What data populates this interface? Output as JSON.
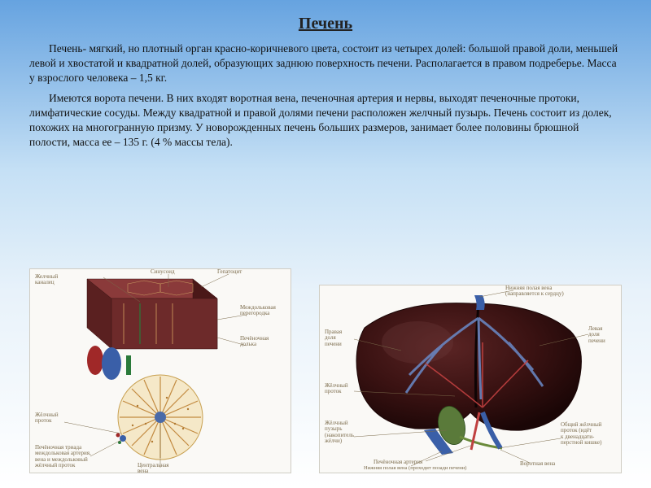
{
  "title": "Печень",
  "para1": "Печень- мягкий, но плотный орган красно-коричневого цвета, состоит из четырех долей: большой правой доли, меньшей левой и хвостатой и квадратной долей, образующих заднюю поверхность печени. Располагается в правом подреберье. Масса у взрослого человека – 1,5 кг.",
  "para2": "Имеются ворота печени. В них входят воротная вена, печеночная артерия и нервы, выходят печеночные протоки, лимфатические сосуды. Между квадратной и правой долями печени расположен желчный пузырь. Печень состоит из долек, похожих на многогранную призму. У новорожденных печень больших размеров, занимает более половины брюшной полости, масса ее – 135 г. (4 % массы тела).",
  "left_diagram": {
    "labels": {
      "bile_canaliculus": "Желчный\nканалец",
      "sinusoid": "Синусоид",
      "hepatocyte": "Гепатоцит",
      "interlobular_septum": "Междольковая\nперегородка",
      "hepatic_lobule": "Печёночная\nдолька",
      "bile_duct": "Жёлчный\nпроток",
      "portal_triad": "Печёночная триада\nмеждольковая артерия,\nвена и междольковый\nжёлчный проток",
      "central_vein": "Центральная\nвена"
    },
    "colors": {
      "lobule_block": "#6d2a2a",
      "lobule_dark": "#3d1414",
      "vein_blue": "#3a5fa8",
      "artery_red": "#a02828",
      "duct_green": "#2a7a3a",
      "histology_bg": "#f5e8c8",
      "histology_border": "#c8a050",
      "central_vein": "#4a6aa8"
    }
  },
  "right_diagram": {
    "labels": {
      "ivc_top": "Нижняя полая вена\n(направляется к сердцу)",
      "right_lobe": "Правая\nдоля\nпечени",
      "left_lobe": "Левая\nдоля\nпечени",
      "bile_duct": "Жёлчный\nпроток",
      "gallbladder": "Жёлчный\nпузырь\n(накопитель\nжёлчи)",
      "hepatic_artery": "Печёночная артерия",
      "common_bile_duct": "Общий жёлчный\nпроток (идёт\nк двенадцати-\nперстной кишке)",
      "ivc_bottom": "Нижняя полая вена (проходит позади печени)",
      "portal_vein": "Воротная вена"
    },
    "colors": {
      "liver_dark": "#2a0e0e",
      "liver_mid": "#4a1818",
      "liver_edge": "#6a3a3a",
      "vein_blue": "#3a5fa8",
      "vein_light": "#6a8ac8",
      "artery_red": "#c04040",
      "gallbladder": "#5a7a3a"
    }
  }
}
